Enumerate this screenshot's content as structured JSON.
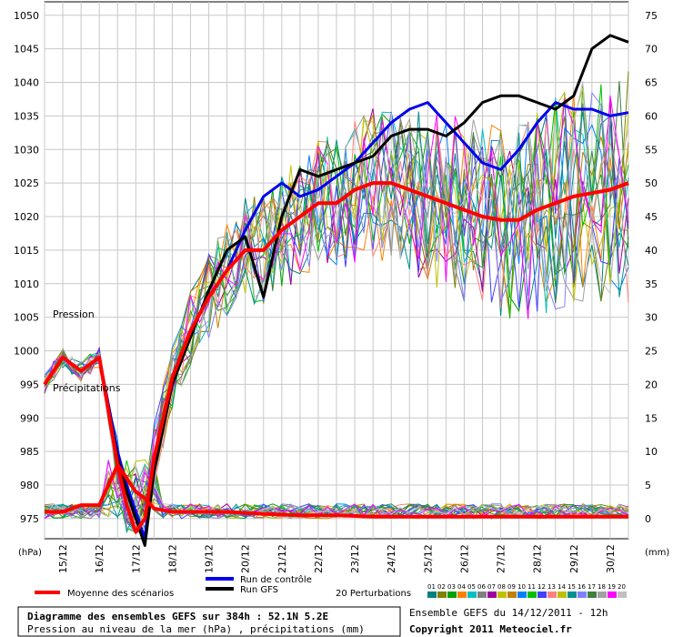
{
  "chart_data": {
    "type": "line",
    "title": "Diagramme des ensembles GEFS sur 384h : 52.1N 5.2E",
    "subtitle": "Pression au niveau de la mer (hPa) , précipitations (mm)",
    "left_unit": "(hPa)",
    "right_unit": "(mm)",
    "left_ticks": [
      975,
      980,
      985,
      990,
      995,
      1000,
      1005,
      1010,
      1015,
      1020,
      1025,
      1030,
      1035,
      1040,
      1045,
      1050
    ],
    "right_ticks": [
      0,
      5,
      10,
      15,
      20,
      25,
      30,
      35,
      40,
      45,
      50,
      55,
      60,
      65,
      70,
      75
    ],
    "ylim_left": [
      972,
      1052
    ],
    "ylim_right": [
      -3,
      77
    ],
    "x_dates": [
      "15/12",
      "16/12",
      "17/12",
      "18/12",
      "19/12",
      "20/12",
      "21/12",
      "22/12",
      "23/12",
      "24/12",
      "25/12",
      "26/12",
      "27/12",
      "28/12",
      "29/12",
      "30/12"
    ],
    "x_hours_range": [
      0,
      384
    ],
    "label_pression": "Pression",
    "label_precip": "Précipitations",
    "grid": true,
    "series": [
      {
        "name": "Run de contrôle",
        "color": "#0000ee",
        "width": 3,
        "x": [
          0,
          12,
          24,
          36,
          48,
          54,
          60,
          66,
          72,
          84,
          96,
          108,
          120,
          132,
          144,
          156,
          168,
          180,
          192,
          204,
          216,
          228,
          240,
          252,
          264,
          276,
          288,
          300,
          312,
          324,
          336,
          348,
          360,
          372,
          384
        ],
        "y": [
          995,
          999,
          997,
          999,
          985,
          980,
          976,
          972,
          983,
          996,
          1003,
          1008,
          1012,
          1018,
          1023,
          1025,
          1023,
          1024,
          1026,
          1028,
          1031,
          1034,
          1036,
          1037,
          1034,
          1031,
          1028,
          1027,
          1030,
          1034,
          1037,
          1036,
          1036,
          1035,
          1035.5
        ]
      },
      {
        "name": "Run GFS",
        "color": "#000000",
        "width": 3,
        "x": [
          0,
          12,
          24,
          36,
          48,
          54,
          60,
          66,
          72,
          84,
          96,
          108,
          120,
          132,
          144,
          156,
          168,
          180,
          192,
          204,
          216,
          228,
          240,
          252,
          264,
          276,
          288,
          300,
          312,
          324,
          336,
          348,
          360,
          372,
          384
        ],
        "y": [
          995,
          999,
          997,
          999,
          984,
          979,
          975,
          971,
          982,
          995,
          1002,
          1009,
          1015,
          1017,
          1008,
          1020,
          1027,
          1026,
          1027,
          1028,
          1029,
          1032,
          1033,
          1033,
          1032,
          1034,
          1037,
          1038,
          1038,
          1037,
          1036,
          1038,
          1045,
          1047,
          1046
        ]
      },
      {
        "name": "Moyenne des scénarios",
        "color": "#ff0000",
        "width": 4,
        "x": [
          0,
          12,
          24,
          36,
          48,
          54,
          60,
          66,
          72,
          84,
          96,
          108,
          120,
          132,
          144,
          156,
          168,
          180,
          192,
          204,
          216,
          228,
          240,
          252,
          264,
          276,
          288,
          300,
          312,
          324,
          336,
          348,
          360,
          372,
          384
        ],
        "y": [
          995,
          999,
          997,
          999,
          983,
          977,
          973,
          975,
          984,
          996,
          1003,
          1008,
          1012,
          1015,
          1015,
          1018,
          1020,
          1022,
          1022,
          1024,
          1025,
          1025,
          1024,
          1023,
          1022,
          1021,
          1020,
          1019.5,
          1019.5,
          1021,
          1022,
          1023,
          1023.5,
          1024,
          1025
        ]
      },
      {
        "name": "Moyenne des scénarios (précipitations)",
        "color": "#ff0000",
        "width": 4,
        "axis": "right",
        "x": [
          0,
          12,
          24,
          36,
          48,
          54,
          60,
          66,
          72,
          84,
          96,
          120,
          144,
          168,
          192,
          216,
          240,
          264,
          288,
          312,
          336,
          360,
          384
        ],
        "y": [
          1,
          1,
          2,
          2,
          8,
          6,
          4,
          3,
          1.5,
          1,
          1,
          1,
          0.7,
          0.5,
          0.5,
          0.3,
          0.3,
          0.3,
          0.3,
          0.3,
          0.3,
          0.3,
          0.3
        ]
      }
    ],
    "legend": [
      {
        "label": "Moyenne des scénarios",
        "color": "#ff0000"
      },
      {
        "label": "Run de contrôle",
        "color": "#0000ee"
      },
      {
        "label": "Run GFS",
        "color": "#000000"
      }
    ],
    "perturbations_label": "20 Perturbations",
    "perturbation_numbers": [
      "01",
      "02",
      "03",
      "04",
      "05",
      "06",
      "07",
      "08",
      "09",
      "10",
      "11",
      "12",
      "13",
      "14",
      "15",
      "16",
      "17",
      "18",
      "19",
      "20"
    ],
    "perturbation_colors": [
      "#008080",
      "#808000",
      "#00a000",
      "#ff8000",
      "#00c0c0",
      "#808080",
      "#a000a0",
      "#c0c000",
      "#c08000",
      "#0080ff",
      "#00c000",
      "#4040ff",
      "#ff8080",
      "#c0c000",
      "#009090",
      "#8080ff",
      "#408040",
      "#a0a0a0",
      "#ff00ff",
      "#c0c0c0"
    ]
  },
  "footer": {
    "ensemble": "Ensemble GEFS du 14/12/2011 - 12h",
    "copyright": "Copyright 2011 Meteociel.fr"
  },
  "colors": {
    "grid": "#c8c8c8",
    "background": "#ffffff",
    "frame": "#000000"
  }
}
